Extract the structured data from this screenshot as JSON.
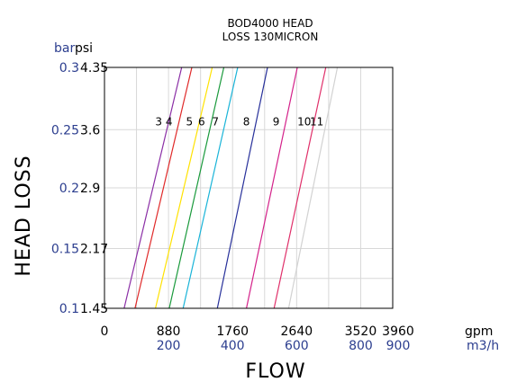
{
  "chart_data": {
    "type": "line",
    "title_lines": [
      "BOD4000 HEAD",
      "LOSS 130MICRON"
    ],
    "xlabel": "FLOW",
    "ylabel": "HEAD LOSS",
    "x_unit_primary": "gpm",
    "x_unit_secondary": "m3/h",
    "y_unit_secondary": "bar",
    "y_unit_primary": "psi",
    "xlim": [
      0,
      3960
    ],
    "ylim": [
      1.45,
      4.35
    ],
    "x_ticks_gpm": [
      "0",
      "880",
      "1760",
      "2640",
      "3520",
      "3960"
    ],
    "x_ticks_m3h": [
      {
        "at": 880,
        "label": "200"
      },
      {
        "at": 1760,
        "label": "400"
      },
      {
        "at": 2640,
        "label": "600"
      },
      {
        "at": 3520,
        "label": "800"
      },
      {
        "at": 3960,
        "label": "900"
      }
    ],
    "y_ticks": [
      {
        "psi": 4.35,
        "psi_label": "4.35",
        "bar_label": "0.3"
      },
      {
        "psi": 3.6,
        "psi_label": "3.6",
        "bar_label": "0.25"
      },
      {
        "psi": 2.9,
        "psi_label": "2.9",
        "bar_label": "0.2"
      },
      {
        "psi": 2.17,
        "psi_label": "2.17",
        "bar_label": "0.15"
      },
      {
        "psi": 1.45,
        "psi_label": "1.45",
        "bar_label": "0.1"
      }
    ],
    "grid": true,
    "series": [
      {
        "name": "3",
        "color": "#8b2fa6",
        "x": [
          270,
          1060
        ],
        "y": [
          1.45,
          4.35
        ]
      },
      {
        "name": "4",
        "color": "#e02a2a",
        "x": [
          420,
          1200
        ],
        "y": [
          1.45,
          4.35
        ]
      },
      {
        "name": "5",
        "color": "#ffe200",
        "x": [
          700,
          1480
        ],
        "y": [
          1.45,
          4.35
        ]
      },
      {
        "name": "6",
        "color": "#1a9a3c",
        "x": [
          890,
          1640
        ],
        "y": [
          1.45,
          4.35
        ]
      },
      {
        "name": "7",
        "color": "#1ab4d8",
        "x": [
          1080,
          1830
        ],
        "y": [
          1.45,
          4.35
        ]
      },
      {
        "name": "8",
        "color": "#27309a",
        "x": [
          1550,
          2240
        ],
        "y": [
          1.45,
          4.35
        ]
      },
      {
        "name": "9",
        "color": "#d4228a",
        "x": [
          1950,
          2650
        ],
        "y": [
          1.45,
          4.35
        ]
      },
      {
        "name": "10",
        "color": "#e0306a",
        "x": [
          2330,
          3040
        ],
        "y": [
          1.45,
          4.35
        ]
      },
      {
        "name": "11",
        "color": "#d2d2d2",
        "x": [
          2530,
          3200
        ],
        "y": [
          1.45,
          4.35
        ]
      }
    ],
    "curve_label_y": 3.6
  }
}
